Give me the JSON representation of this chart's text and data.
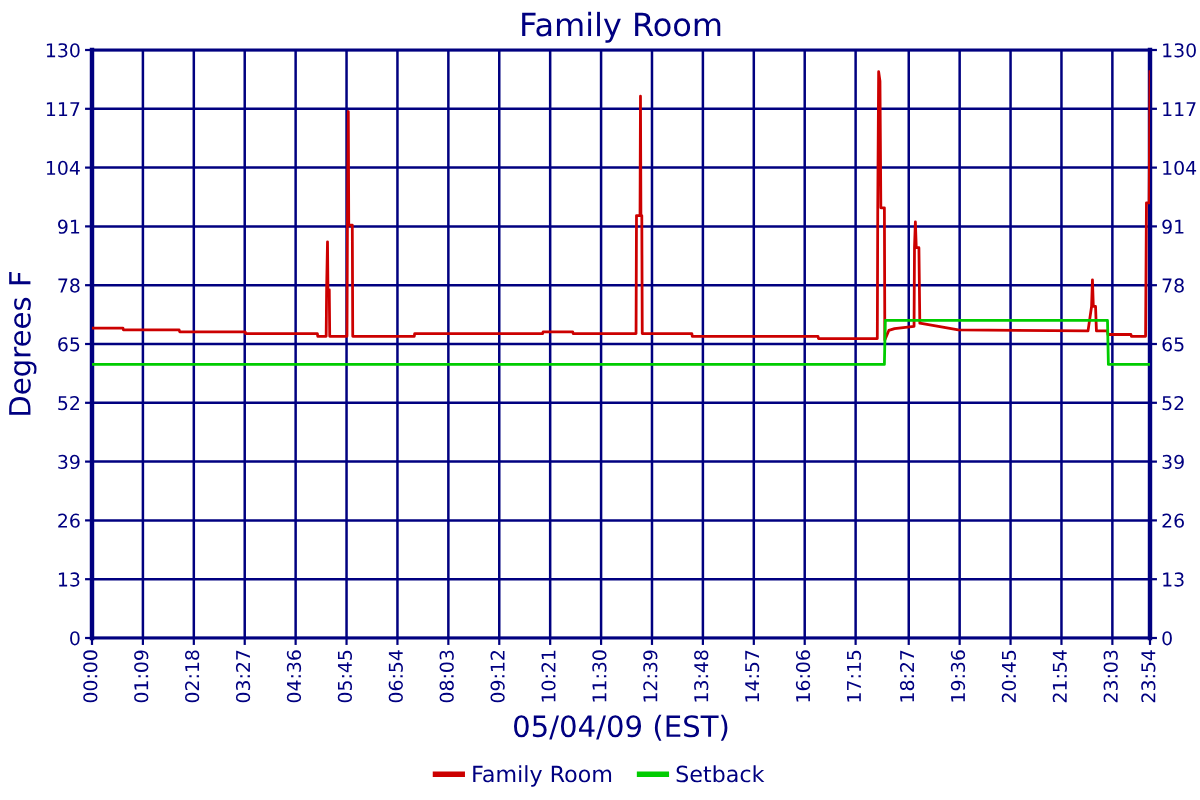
{
  "chart_data": {
    "type": "line",
    "title": "Family Room",
    "xlabel": "05/04/09 (EST)",
    "ylabel": "Degrees F",
    "xlim": [
      0,
      23.9
    ],
    "xticks": [
      {
        "value": 0,
        "label": "00:00"
      },
      {
        "value": 1.15,
        "label": "01:09"
      },
      {
        "value": 2.3,
        "label": "02:18"
      },
      {
        "value": 3.45,
        "label": "03:27"
      },
      {
        "value": 4.6,
        "label": "04:36"
      },
      {
        "value": 5.75,
        "label": "05:45"
      },
      {
        "value": 6.9,
        "label": "06:54"
      },
      {
        "value": 8.05,
        "label": "08:03"
      },
      {
        "value": 9.2,
        "label": "09:12"
      },
      {
        "value": 10.35,
        "label": "10:21"
      },
      {
        "value": 11.5,
        "label": "11:30"
      },
      {
        "value": 12.65,
        "label": "12:39"
      },
      {
        "value": 13.8,
        "label": "13:48"
      },
      {
        "value": 14.95,
        "label": "14:57"
      },
      {
        "value": 16.1,
        "label": "16:06"
      },
      {
        "value": 17.25,
        "label": "17:15"
      },
      {
        "value": 18.45,
        "label": "18:27"
      },
      {
        "value": 19.6,
        "label": "19:36"
      },
      {
        "value": 20.75,
        "label": "20:45"
      },
      {
        "value": 21.9,
        "label": "21:54"
      },
      {
        "value": 23.05,
        "label": "23:03"
      },
      {
        "value": 23.9,
        "label": "23:54"
      }
    ],
    "ylim": [
      0,
      130
    ],
    "yticks": [
      0,
      13,
      26,
      39,
      52,
      65,
      78,
      91,
      104,
      117,
      130
    ],
    "y2lim": [
      0,
      130
    ],
    "y2ticks": [
      0,
      13,
      26,
      39,
      52,
      65,
      78,
      91,
      104,
      117,
      130
    ],
    "grid": true,
    "legend": "bottom",
    "series": [
      {
        "name": "Family Room",
        "color": "#cc0000",
        "x": [
          0,
          0.7,
          0.71,
          1.97,
          1.98,
          3.46,
          3.47,
          5.09,
          5.1,
          5.29,
          5.3,
          5.32,
          5.33,
          5.36,
          5.37,
          5.76,
          5.77,
          5.79,
          5.8,
          5.88,
          5.89,
          7.28,
          7.29,
          10.18,
          10.19,
          10.86,
          10.87,
          12.29,
          12.3,
          12.38,
          12.39,
          12.4,
          12.42,
          12.43,
          13.55,
          13.56,
          16.4,
          16.41,
          17.74,
          17.75,
          17.77,
          17.8,
          17.82,
          17.9,
          17.91,
          18.0,
          18.13,
          18.57,
          18.58,
          18.6,
          18.62,
          18.68,
          18.7,
          19.12,
          19.57,
          22.5,
          22.58,
          22.6,
          22.62,
          22.67,
          22.69,
          22.94,
          22.95,
          23.47,
          23.48,
          23.8,
          23.82,
          23.88,
          23.9
        ],
        "values": [
          68.5,
          68.5,
          68.1,
          68.1,
          67.7,
          67.7,
          67.3,
          67.3,
          66.7,
          66.7,
          77.0,
          87.6,
          77.0,
          77.0,
          66.7,
          66.7,
          91.3,
          116.4,
          91.3,
          91.3,
          66.7,
          66.7,
          67.3,
          67.3,
          67.7,
          67.7,
          67.3,
          67.3,
          93.4,
          93.4,
          119.8,
          93.4,
          93.4,
          67.3,
          67.3,
          66.7,
          66.7,
          66.2,
          66.2,
          95.1,
          125.2,
          123.1,
          95.1,
          95.1,
          65.9,
          68.0,
          68.4,
          68.9,
          86.3,
          92.0,
          86.3,
          86.3,
          69.6,
          68.9,
          68.1,
          67.9,
          73.3,
          79.2,
          73.3,
          73.3,
          67.9,
          67.9,
          67.1,
          67.1,
          66.7,
          66.7,
          96.2,
          96.2,
          125.2
        ]
      },
      {
        "name": "Setback",
        "color": "#00cc00",
        "x": [
          0,
          17.9,
          17.92,
          22.94,
          22.96,
          23.9
        ],
        "values": [
          60.5,
          60.5,
          70.2,
          70.2,
          60.5,
          60.5
        ]
      }
    ]
  }
}
